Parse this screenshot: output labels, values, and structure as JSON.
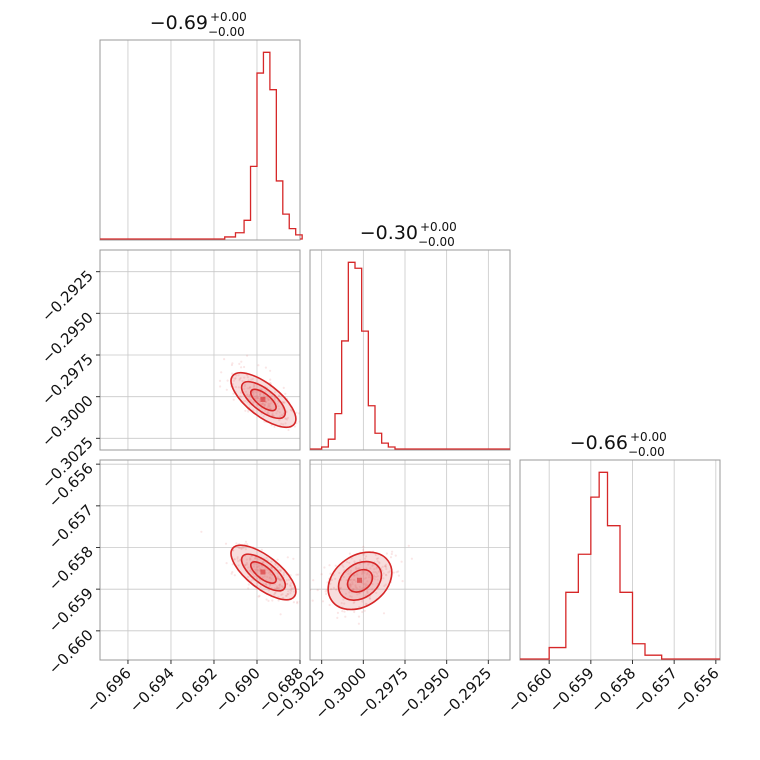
{
  "chart_data": {
    "type": "scatter",
    "plot_kind": "corner",
    "color": "#d62728",
    "grid": true,
    "parameters": [
      {
        "median": -0.6897,
        "title_main": "−0.69",
        "title_plus": "+0.00",
        "title_minus": "−0.00",
        "range": [
          -0.6973,
          -0.688
        ],
        "ticks": [
          -0.696,
          -0.694,
          -0.692,
          -0.69,
          -0.688
        ],
        "tick_labels": [
          "−0.696",
          "−0.694",
          "−0.692",
          "−0.690",
          "−0.688"
        ],
        "hist": {
          "edges": [
            -0.6915,
            -0.691,
            -0.6906,
            -0.6903,
            -0.69,
            -0.6897,
            -0.6894,
            -0.6891,
            -0.6888,
            -0.6885,
            -0.6882,
            -0.6879
          ],
          "counts": [
            1,
            3,
            9,
            35,
            80,
            90,
            72,
            28,
            12,
            5,
            2
          ]
        }
      },
      {
        "median": -0.3,
        "title_main": "−0.30",
        "title_plus": "+0.00",
        "title_minus": "−0.00",
        "range": [
          -0.3032,
          -0.2912
        ],
        "ticks": [
          -0.3025,
          -0.3,
          -0.2975,
          -0.295,
          -0.2925
        ],
        "tick_labels": [
          "−0.3025",
          "−0.3000",
          "−0.2975",
          "−0.2950",
          "−0.2925"
        ],
        "y_tick_labels": [
          "−0.2925",
          "−0.2950",
          "−0.2975",
          "−0.3000",
          "−0.3025"
        ],
        "hist": {
          "edges": [
            -0.3025,
            -0.3021,
            -0.3017,
            -0.3013,
            -0.3009,
            -0.3005,
            -0.3001,
            -0.2997,
            -0.2993,
            -0.2989,
            -0.2985,
            -0.2981
          ],
          "counts": [
            1,
            5,
            18,
            55,
            95,
            92,
            60,
            22,
            8,
            3,
            1
          ]
        }
      },
      {
        "median": -0.6588,
        "title_main": "−0.66",
        "title_plus": "+0.00",
        "title_minus": "−0.00",
        "range": [
          -0.6607,
          -0.6559
        ],
        "ticks": [
          -0.66,
          -0.659,
          -0.658,
          -0.657,
          -0.656
        ],
        "tick_labels": [
          "−0.660",
          "−0.659",
          "−0.658",
          "−0.657",
          "−0.656"
        ],
        "hist": {
          "edges": [
            -0.66,
            -0.6596,
            -0.6593,
            -0.659,
            -0.6588,
            -0.6586,
            -0.6583,
            -0.658,
            -0.6577,
            -0.6573
          ],
          "counts": [
            6,
            35,
            55,
            85,
            98,
            70,
            35,
            8,
            2
          ]
        }
      }
    ],
    "panels_2d": [
      {
        "x_param": 0,
        "y_param": 1,
        "center": [
          -0.6897,
          -0.3002
        ],
        "orientation": "negative correlation"
      },
      {
        "x_param": 0,
        "y_param": 2,
        "center": [
          -0.6897,
          -0.6586
        ],
        "orientation": "negative correlation"
      },
      {
        "x_param": 1,
        "y_param": 2,
        "center": [
          -0.3002,
          -0.6588
        ],
        "orientation": "positive correlation"
      }
    ]
  }
}
